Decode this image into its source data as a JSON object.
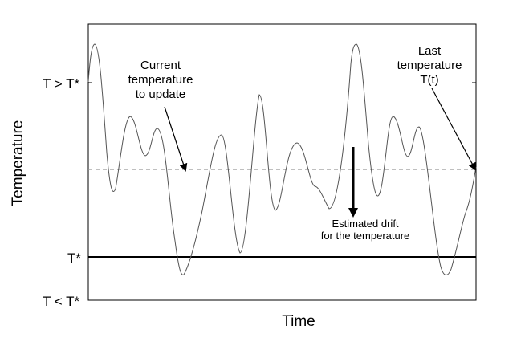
{
  "axes": {
    "x_title": "Time",
    "y_title": "Temperature"
  },
  "y_ticks": {
    "high": "T > T*",
    "mid": "T*",
    "low": "T < T*"
  },
  "annotations": {
    "current": [
      "Current",
      "temperature",
      "to update"
    ],
    "last": [
      "Last",
      "temperature",
      "T(t)"
    ],
    "drift": [
      "Estimated drift",
      "for the temperature"
    ]
  },
  "colors": {
    "curve": "#555555",
    "dashed_line": "#999999",
    "threshold_line": "#000000",
    "frame": "#000000"
  }
}
